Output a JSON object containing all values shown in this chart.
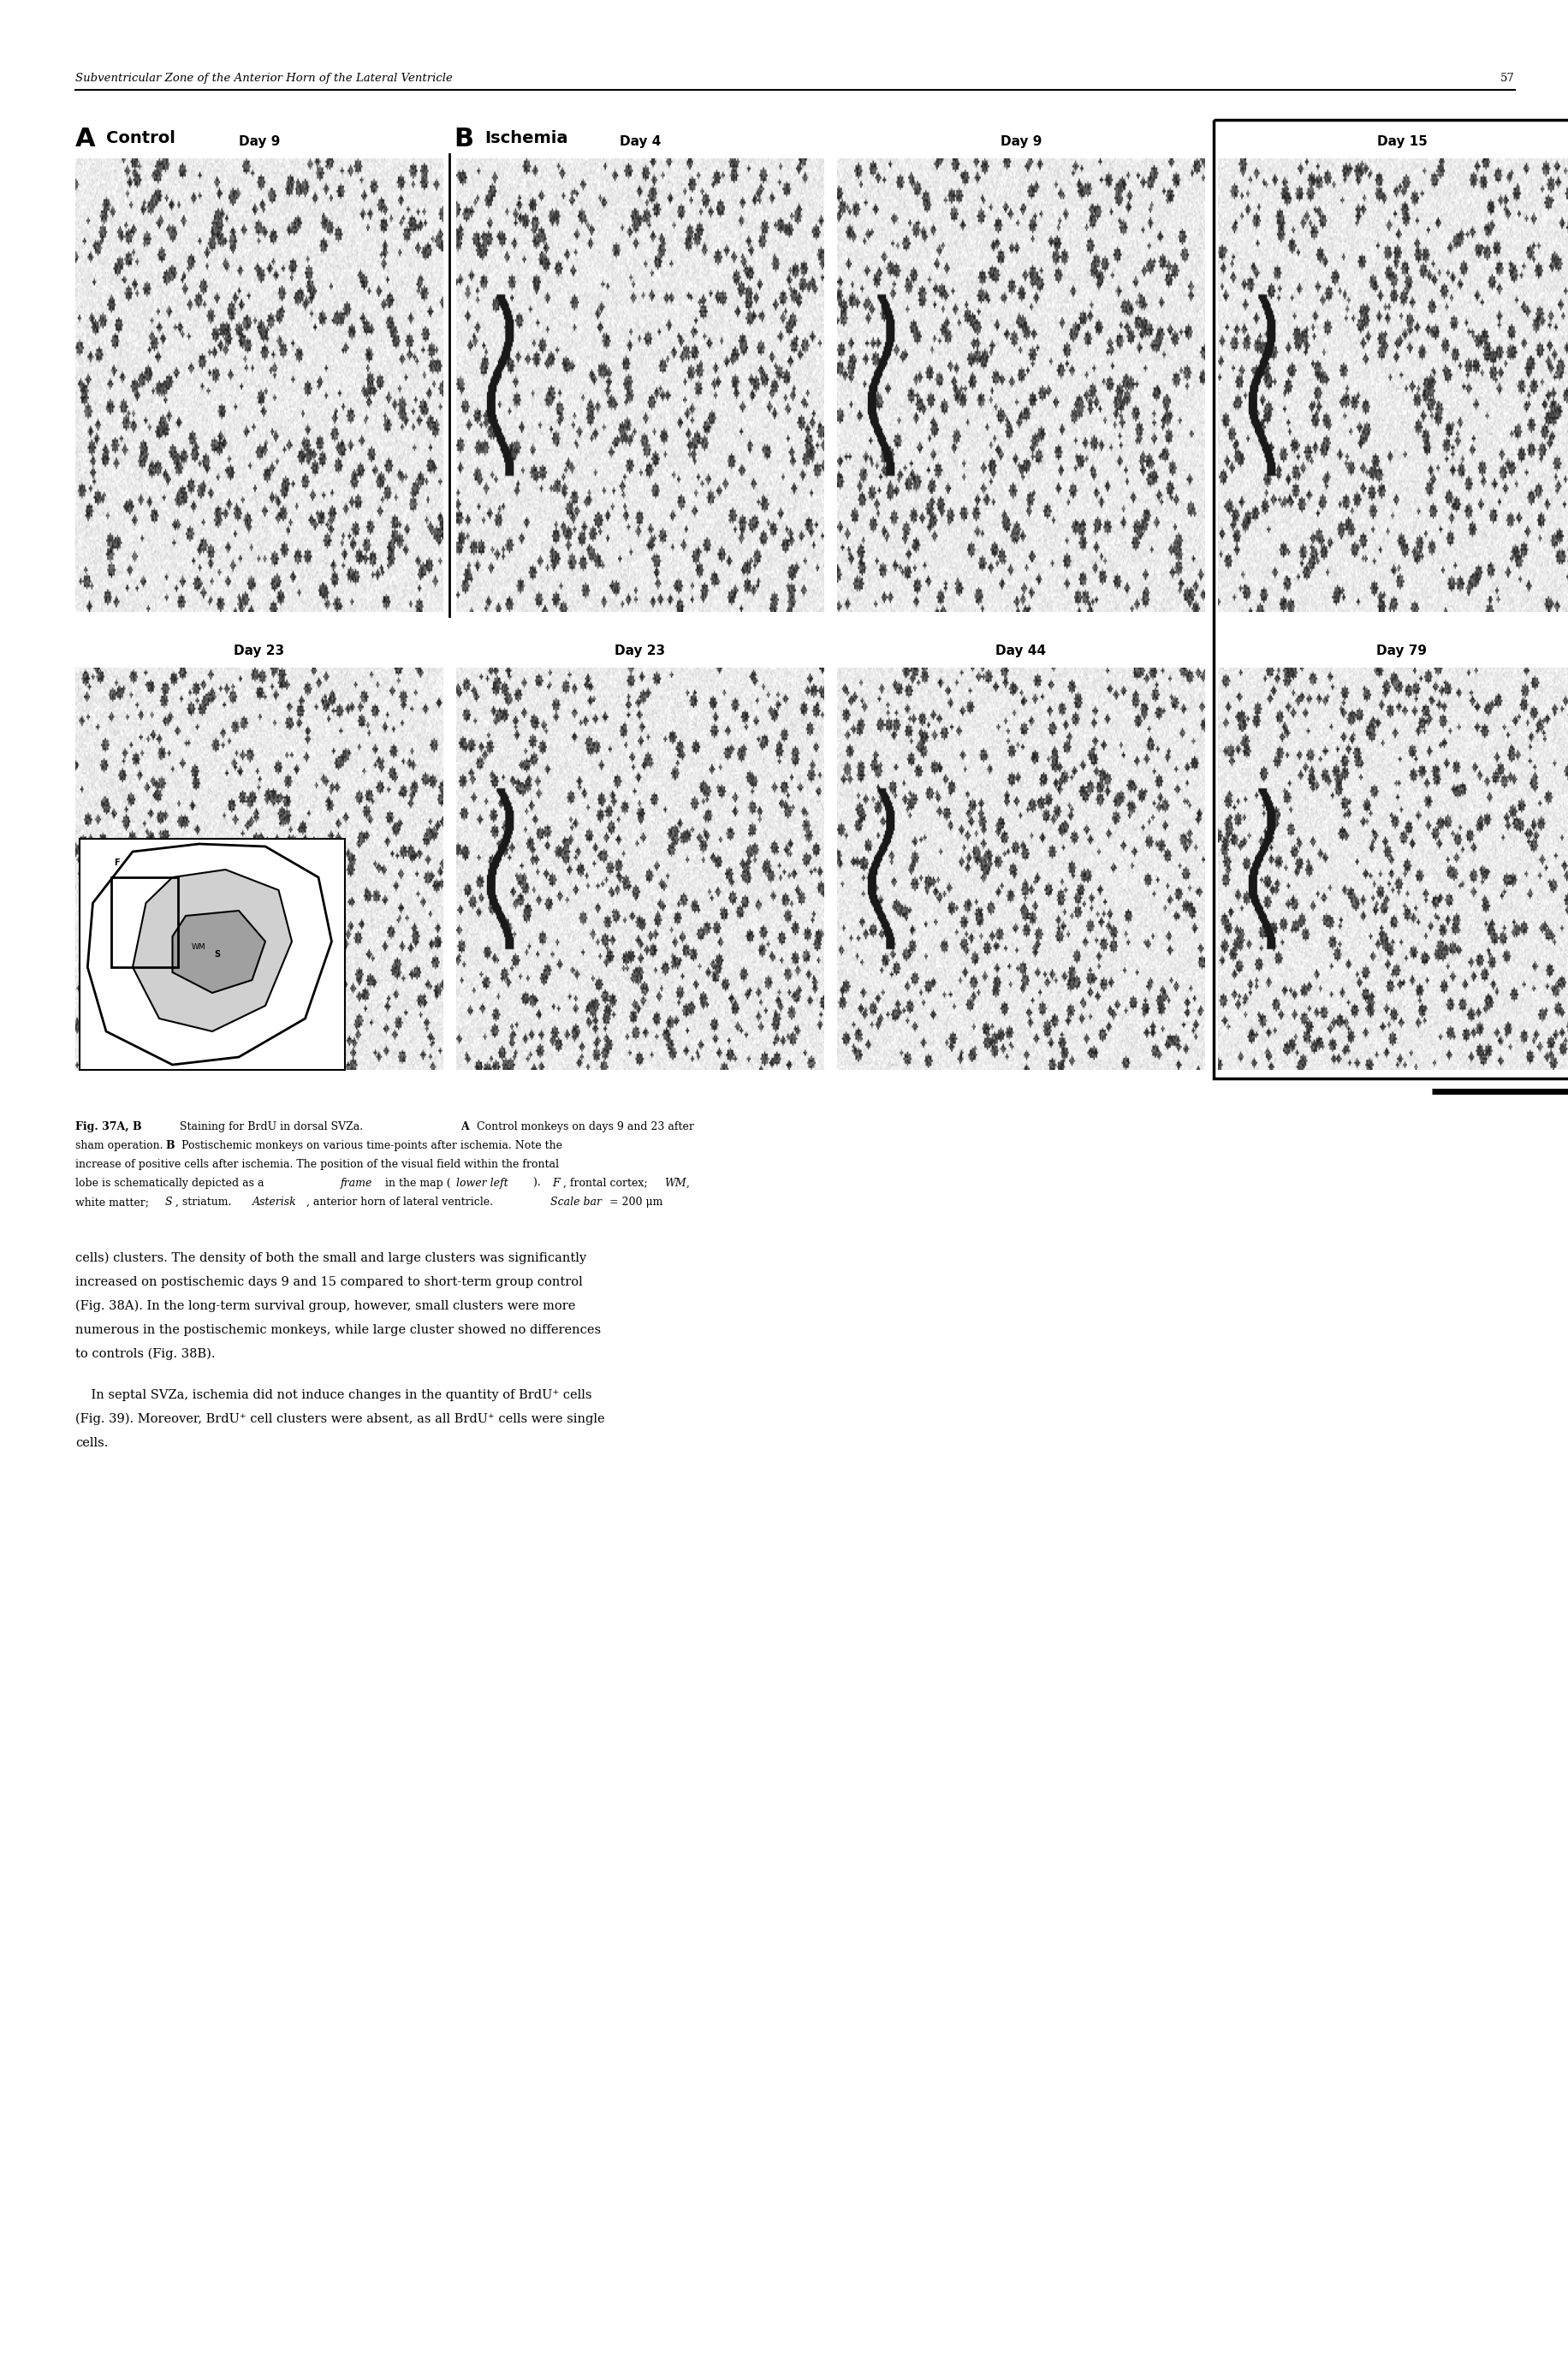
{
  "page_header": "Subventricular Zone of the Anterior Horn of the Lateral Ventricle",
  "page_number": "57",
  "section_A_label": "A",
  "section_B_label": "B",
  "section_A_title": "Control",
  "section_B_title": "Ischemia",
  "top_days": [
    "Day 9",
    "Day 4",
    "Day 9",
    "Day 15"
  ],
  "bot_days": [
    "Day 23",
    "Day 23",
    "Day 44",
    "Day 79"
  ],
  "WM_label": "WM",
  "S_label": "S",
  "bg_color": "#ffffff",
  "font_size_header": 9.5,
  "font_size_section_A": 22,
  "font_size_section_title": 14,
  "font_size_section_B": 22,
  "font_size_day": 11,
  "font_size_WM": 11,
  "font_size_S": 13,
  "font_size_asterisk": 20,
  "font_size_caption_bold": 9,
  "font_size_caption": 9,
  "font_size_body": 10.5,
  "caption_line1": "Fig. 37A, B",
  "caption_line1_rest": " Staining for BrdU in dorsal SVZa. ",
  "caption_A_bold": "A",
  "caption_A_rest": " Control monkeys on days 9 and 23 after",
  "caption_line2": "sham operation. ",
  "caption_B_bold": "B",
  "caption_B_rest": " Postischemic monkeys on various time-points after ischemia. Note the",
  "caption_line3": "increase of positive cells after ischemia. The position of the visual field within the frontal",
  "caption_line4_pre": "lobe is schematically depicted as a ",
  "caption_line4_frame": "frame",
  "caption_line4_mid": " in the map (",
  "caption_line4_lower": "lower left",
  "caption_line4_end": "). ",
  "caption_line4_F": "F",
  "caption_line4_Ftext": ", frontal cortex; ",
  "caption_line4_WM": "WM",
  "caption_line4_WMtext": ",",
  "caption_line5": "white matter; S, striatum. ",
  "caption_line5_asterisk": "Asterisk",
  "caption_line5_asterisk_text": ", anterior horn of lateral ventricle. ",
  "caption_line5_scalebar": "Scale bar",
  "caption_line5_scalebar_text": " = 200 μm",
  "body_para1_lines": [
    "cells) clusters. The density of both the small and large clusters was significantly",
    "increased on postischemic days 9 and 15 compared to short-term group control",
    "(Fig. 38A). In the long-term survival group, however, small clusters were more",
    "numerous in the postischemic monkeys, while large cluster showed no differences",
    "to controls (Fig. 38B)."
  ],
  "body_para2_lines": [
    "    In septal SVZa, ischemia did not induce changes in the quantity of BrdU⁺ cells",
    "(Fig. 39). Moreover, BrdU⁺ cell clusters were absent, as all BrdU⁺ cells were single",
    "cells."
  ]
}
